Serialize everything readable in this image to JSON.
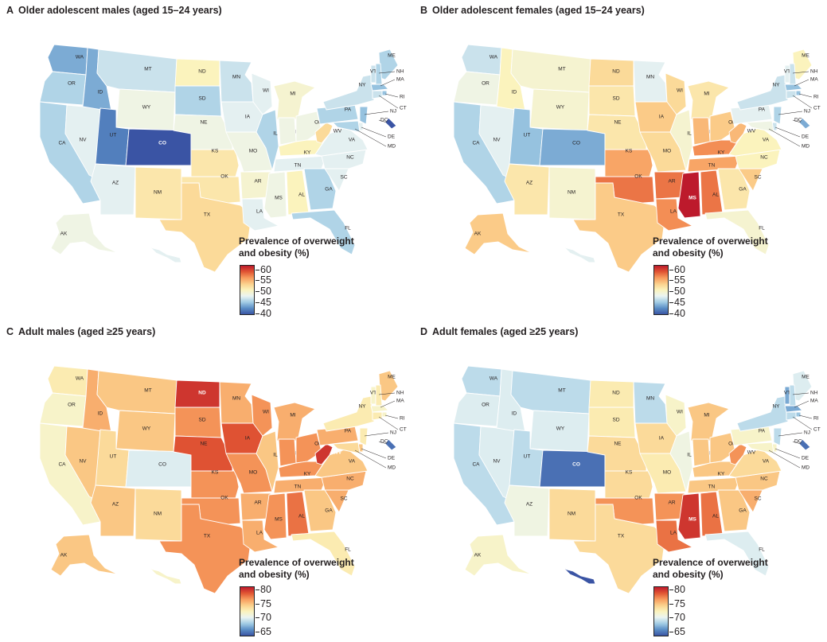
{
  "colors": {
    "scale": [
      "#3a54a4",
      "#5b8fc6",
      "#a3cde5",
      "#eaf4f2",
      "#fbf3bd",
      "#fbd08c",
      "#f79b5d",
      "#e15533",
      "#bd1a2c"
    ],
    "border": "#ffffff"
  },
  "panels": [
    {
      "letter": "A",
      "title": "Older adolescent males (aged 15–24 years)",
      "legend": {
        "title_line1": "Prevalence of overweight",
        "title_line2": "and obesity (%)",
        "ticks": [
          "60",
          "55",
          "50",
          "45",
          "40"
        ],
        "min": 40,
        "max": 62
      },
      "values": {
        "WA": 44,
        "OR": 46,
        "CA": 46,
        "NV": 48,
        "ID": 44,
        "MT": 47,
        "WY": 49,
        "UT": 42,
        "CO": 40,
        "AZ": 48,
        "NM": 52,
        "ND": 51,
        "SD": 46,
        "NE": 49,
        "KS": 52,
        "OK": 52,
        "TX": 53,
        "MN": 47,
        "IA": 48,
        "MO": 49,
        "AR": 50,
        "LA": 48,
        "WI": 48,
        "IL": 46,
        "MI": 50,
        "IN": 49,
        "OH": 49,
        "KY": 51,
        "TN": 48,
        "MS": 49,
        "AL": 51,
        "GA": 46,
        "FL": 46,
        "SC": 48,
        "NC": 48,
        "VA": 48,
        "WV": 53,
        "PA": 46,
        "NY": 47,
        "ME": 46,
        "VT": 47,
        "NH": 46,
        "MA": 45,
        "RI": 45,
        "CT": 47,
        "NJ": 45,
        "DE": 48,
        "MD": 46,
        "DC": 40,
        "AK": 49,
        "HI": 48
      }
    },
    {
      "letter": "B",
      "title": "Older adolescent females (aged 15–24 years)",
      "legend": {
        "title_line1": "Prevalence of  overweight",
        "title_line2": "and obesity (%)",
        "ticks": [
          "60",
          "55",
          "50",
          "45",
          "40"
        ],
        "min": 40,
        "max": 62
      },
      "values": {
        "WA": 47,
        "OR": 49,
        "CA": 46,
        "NV": 48,
        "ID": 51,
        "MT": 50,
        "WY": 50,
        "UT": 45,
        "CO": 44,
        "AZ": 52,
        "NM": 50,
        "ND": 53,
        "SD": 52,
        "NE": 52,
        "KS": 56,
        "OK": 58,
        "TX": 54,
        "MN": 48,
        "IA": 54,
        "MO": 53,
        "AR": 58,
        "LA": 57,
        "WI": 53,
        "IL": 50,
        "MI": 52,
        "IN": 55,
        "OH": 54,
        "KY": 57,
        "TN": 56,
        "MS": 62,
        "AL": 58,
        "GA": 52,
        "FL": 50,
        "SC": 54,
        "NC": 51,
        "VA": 51,
        "WV": 55,
        "PA": 48,
        "NY": 47,
        "ME": 51,
        "VT": 48,
        "NH": 47,
        "MA": 45,
        "RI": 45,
        "CT": 47,
        "NJ": 46,
        "DE": 47,
        "MD": 49,
        "DC": 44,
        "AK": 54,
        "HI": 48
      }
    },
    {
      "letter": "C",
      "title": "Adult males (aged ≥25 years)",
      "legend": {
        "title_line1": "Prevalence of overweight",
        "title_line2": "and obesity (%)",
        "ticks": [
          "80",
          "75",
          "70",
          "65"
        ],
        "min": 64,
        "max": 81
      },
      "values": {
        "WA": 73,
        "OR": 72,
        "CA": 72,
        "NV": 75,
        "ID": 76,
        "MT": 75,
        "WY": 75,
        "UT": 74,
        "CO": 70,
        "AZ": 75,
        "NM": 74,
        "ND": 80,
        "SD": 77,
        "NE": 79,
        "KS": 77,
        "OK": 77,
        "TX": 77,
        "MN": 76,
        "IA": 79,
        "MO": 77,
        "AR": 76,
        "LA": 76,
        "WI": 77,
        "IL": 75,
        "MI": 76,
        "IN": 77,
        "OH": 77,
        "KY": 77,
        "TN": 76,
        "MS": 77,
        "AL": 78,
        "GA": 75,
        "FL": 73,
        "SC": 76,
        "NC": 76,
        "VA": 75,
        "WV": 80,
        "PA": 76,
        "NY": 73,
        "ME": 75,
        "VT": 72,
        "NH": 73,
        "MA": 72,
        "RI": 72,
        "CT": 73,
        "NJ": 73,
        "DE": 75,
        "MD": 74,
        "DC": 65,
        "AK": 75,
        "HI": 72
      }
    },
    {
      "letter": "D",
      "title": "Adult females (aged ≥25 years)",
      "legend": {
        "title_line1": "Prevalence of overweight",
        "title_line2": "and obesity (%)",
        "ticks": [
          "80",
          "75",
          "70",
          "65"
        ],
        "min": 64,
        "max": 81
      },
      "values": {
        "WA": 69,
        "OR": 70,
        "CA": 69,
        "NV": 70,
        "ID": 70,
        "MT": 69,
        "WY": 70,
        "UT": 69,
        "CO": 65,
        "AZ": 71,
        "NM": 74,
        "ND": 73,
        "SD": 73,
        "NE": 74,
        "KS": 74,
        "OK": 77,
        "TX": 74,
        "MN": 69,
        "IA": 74,
        "MO": 73,
        "AR": 77,
        "LA": 78,
        "WI": 72,
        "IL": 71,
        "MI": 75,
        "IN": 75,
        "OH": 75,
        "KY": 75,
        "TN": 75,
        "MS": 80,
        "AL": 78,
        "GA": 75,
        "FL": 70,
        "SC": 76,
        "NC": 75,
        "VA": 74,
        "WV": 77,
        "PA": 72,
        "NY": 69,
        "ME": 70,
        "VT": 67,
        "NH": 69,
        "MA": 67,
        "RI": 68,
        "CT": 69,
        "NJ": 69,
        "DE": 72,
        "MD": 72,
        "DC": 65,
        "AK": 72,
        "HI": 63
      }
    }
  ]
}
